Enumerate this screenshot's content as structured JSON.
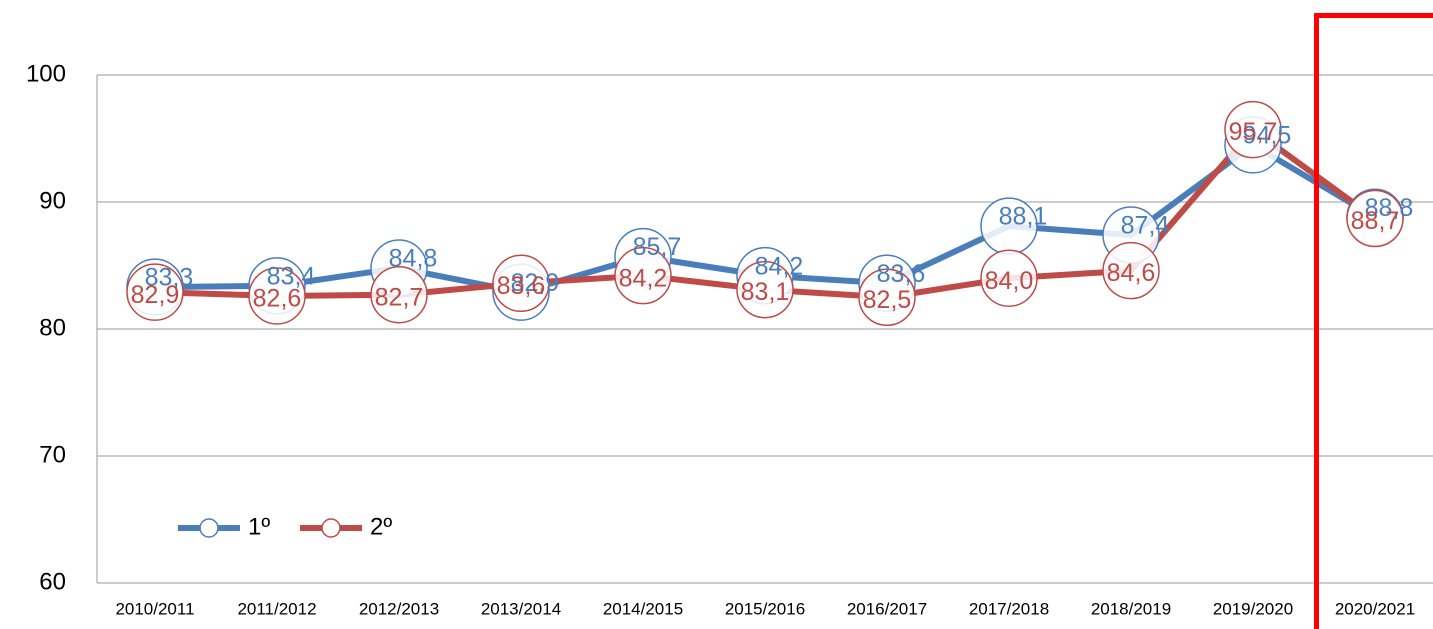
{
  "chart_data": {
    "type": "line",
    "categories": [
      "2010/2011",
      "2011/2012",
      "2012/2013",
      "2013/2014",
      "2014/2015",
      "2015/2016",
      "2016/2017",
      "2017/2018",
      "2018/2019",
      "2019/2020",
      "2020/2021"
    ],
    "series": [
      {
        "name": "1º",
        "color": "#4a7ebb",
        "values": [
          83.3,
          83.4,
          84.8,
          82.9,
          85.7,
          84.2,
          83.6,
          88.1,
          87.4,
          94.5,
          88.8
        ],
        "value_labels": [
          "83,3",
          "83,4",
          "84,8",
          "82,9",
          "85,7",
          "84,2",
          "83,6",
          "88,1",
          "87,4",
          "94,5",
          "88,8"
        ]
      },
      {
        "name": "2º",
        "color": "#be4b48",
        "values": [
          82.9,
          82.6,
          82.7,
          83.6,
          84.2,
          83.1,
          82.5,
          84.0,
          84.6,
          95.7,
          88.7
        ],
        "value_labels": [
          "82,9",
          "82,6",
          "82,7",
          "83,6",
          "84,2",
          "83,1",
          "82,5",
          "84,0",
          "84,6",
          "95,7",
          "88,7"
        ]
      }
    ],
    "ylim": [
      60,
      100
    ],
    "yticks": [
      60,
      70,
      80,
      90,
      100
    ],
    "grid": true,
    "legend": "lower left"
  }
}
